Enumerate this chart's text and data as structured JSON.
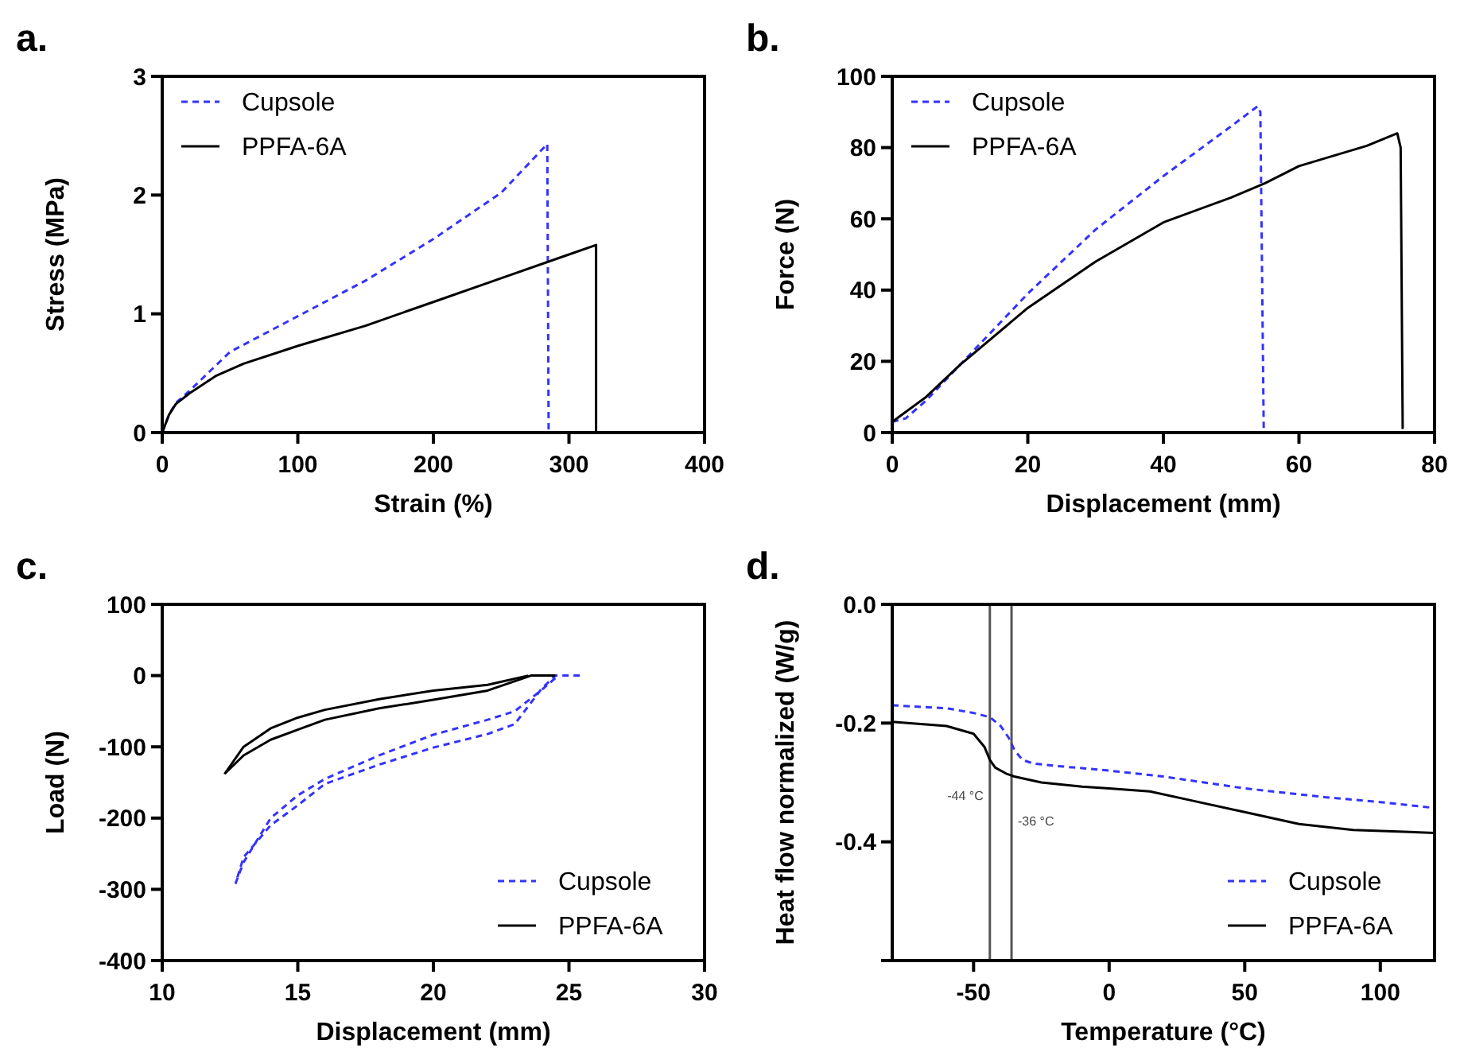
{
  "chart_data": [
    {
      "type": "line",
      "title": "a.",
      "xlabel": "Strain (%)",
      "ylabel": "Stress  (MPa)",
      "xlim": [
        0,
        400
      ],
      "xticks": [
        0,
        100,
        200,
        300,
        400
      ],
      "ylim": [
        0,
        3
      ],
      "yticks": [
        0,
        1,
        2,
        3
      ],
      "legend": "top left",
      "grid": false,
      "series": [
        {
          "name": "Cupsole",
          "color": "#3333ff",
          "line_style": "dashed",
          "x": [
            0,
            5,
            10,
            20,
            50,
            100,
            150,
            200,
            250,
            284,
            285
          ],
          "values": [
            0,
            0.15,
            0.25,
            0.35,
            0.68,
            0.98,
            1.28,
            1.63,
            2.02,
            2.43,
            0
          ]
        },
        {
          "name": "PPFA-6A",
          "color": "#000000",
          "line_style": "solid",
          "x": [
            0,
            5,
            10,
            20,
            40,
            60,
            100,
            150,
            200,
            250,
            300,
            320,
            320
          ],
          "values": [
            0,
            0.15,
            0.24,
            0.33,
            0.48,
            0.58,
            0.73,
            0.9,
            1.1,
            1.3,
            1.5,
            1.58,
            0
          ]
        }
      ]
    },
    {
      "type": "line",
      "title": "b.",
      "xlabel": "Displacement (mm)",
      "ylabel": "Force (N)",
      "xlim": [
        0,
        80
      ],
      "xticks": [
        0,
        20,
        40,
        60,
        80
      ],
      "ylim": [
        0,
        100
      ],
      "yticks": [
        0,
        20,
        40,
        60,
        80,
        100
      ],
      "legend": "top left",
      "grid": false,
      "series": [
        {
          "name": "Cupsole",
          "color": "#3333ff",
          "line_style": "dashed",
          "x": [
            0,
            2,
            5,
            10,
            15,
            20,
            30,
            40,
            50,
            53.9,
            54.3,
            54.8
          ],
          "values": [
            3,
            4,
            9,
            19,
            29,
            39,
            57,
            72,
            86,
            91.6,
            90,
            1
          ]
        },
        {
          "name": "PPFA-6A",
          "color": "#000000",
          "line_style": "solid",
          "x": [
            0,
            5,
            10,
            20,
            30,
            40,
            50,
            55,
            60,
            70,
            74.5,
            75,
            75.3
          ],
          "values": [
            3,
            10,
            19,
            35,
            48,
            59,
            66,
            70,
            74.8,
            80.5,
            84,
            80,
            1
          ]
        }
      ]
    },
    {
      "type": "line",
      "title": "c.",
      "xlabel": "Displacement (mm)",
      "ylabel": "Load  (N)",
      "xlim": [
        10,
        30
      ],
      "xticks": [
        10,
        15,
        20,
        25,
        30
      ],
      "ylim": [
        -400,
        100
      ],
      "yticks": [
        -400,
        -300,
        -200,
        -100,
        0,
        100
      ],
      "legend": "bottom right",
      "grid": false,
      "series": [
        {
          "name": "Cupsole",
          "color": "#3333ff",
          "line_style": "dashed",
          "x": [
            25.4,
            24.5,
            24,
            23,
            22,
            20,
            18,
            16,
            15,
            14,
            13,
            12.7
          ],
          "values": [
            0,
            0,
            -18,
            -68,
            -82,
            -101,
            -125,
            -152,
            -182,
            -210,
            -255,
            -292
          ]
        },
        {
          "color": "#3333ff",
          "line_style": "dashed",
          "x": [
            12.7,
            13,
            14,
            15,
            16,
            18,
            20,
            22,
            23,
            24,
            24.6
          ],
          "values": [
            -292,
            -262,
            -200,
            -168,
            -145,
            -112,
            -83,
            -62,
            -50,
            -20,
            0
          ]
        },
        {
          "name": "PPFA-6A",
          "color": "#000000",
          "line_style": "solid",
          "x": [
            24.5,
            23.6,
            22,
            20,
            18,
            16,
            15,
            14,
            13,
            12.3
          ],
          "values": [
            0,
            0,
            -21,
            -34,
            -46,
            -62,
            -76,
            -90,
            -112,
            -138
          ]
        },
        {
          "color": "#000000",
          "line_style": "solid",
          "x": [
            12.3,
            13,
            14,
            15,
            16,
            18,
            20,
            22,
            23.5
          ],
          "values": [
            -138,
            -100,
            -74,
            -59,
            -48,
            -33,
            -21,
            -13,
            0
          ]
        }
      ]
    },
    {
      "type": "line",
      "title": "d.",
      "xlabel": "Temperature  (°C)",
      "ylabel": "Heat flow normalized (W/g)",
      "xlim": [
        -80,
        120
      ],
      "xticks": [
        -50,
        0,
        50,
        100
      ],
      "ylim": [
        -0.6,
        0
      ],
      "yticks": [
        {
          "value": -0.6,
          "label": null
        },
        -0.4,
        -0.2,
        {
          "value": 0,
          "label": "0.0"
        }
      ],
      "legend": "bottom right",
      "grid": false,
      "ref_lines": [
        {
          "axis": "x",
          "value": -44,
          "label": "-44 °C",
          "color": "#555555"
        },
        {
          "axis": "x",
          "value": -36,
          "label": "-36 °C",
          "color": "#555555"
        }
      ],
      "series": [
        {
          "name": "Cupsole",
          "color": "#3333ff",
          "line_style": "dashed",
          "x": [
            -80,
            -60,
            -50,
            -44,
            -40,
            -37,
            -35,
            -32,
            -28,
            -20,
            0,
            20,
            50,
            80,
            100,
            120
          ],
          "values": [
            -0.17,
            -0.175,
            -0.183,
            -0.19,
            -0.205,
            -0.225,
            -0.245,
            -0.262,
            -0.268,
            -0.272,
            -0.28,
            -0.29,
            -0.31,
            -0.325,
            -0.333,
            -0.343
          ]
        },
        {
          "name": "PPFA-6A",
          "color": "#000000",
          "line_style": "solid",
          "x": [
            -80,
            -60,
            -50,
            -46,
            -44,
            -42,
            -38,
            -35,
            -25,
            -10,
            0,
            15,
            30,
            50,
            70,
            90,
            120
          ],
          "values": [
            -0.198,
            -0.205,
            -0.218,
            -0.24,
            -0.262,
            -0.275,
            -0.285,
            -0.29,
            -0.3,
            -0.307,
            -0.31,
            -0.315,
            -0.33,
            -0.35,
            -0.37,
            -0.38,
            -0.385
          ]
        }
      ]
    }
  ]
}
